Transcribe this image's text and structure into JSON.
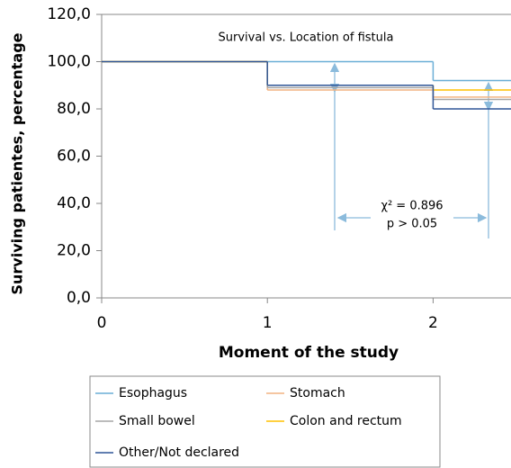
{
  "chart_data": {
    "type": "step",
    "title": "Survival vs. Location of fistula",
    "x_label": "Moment of the study",
    "y_label": "Surviving patientes, percentage",
    "annotations": [
      "χ² = 0.896",
      "p > 0.05"
    ],
    "x": [
      0,
      1,
      2
    ],
    "xlim": [
      0,
      2.47
    ],
    "xticks": [
      0,
      1,
      2
    ],
    "ylim": [
      0,
      120
    ],
    "yticks": [
      {
        "value": 0,
        "label": "0,0"
      },
      {
        "value": 20,
        "label": "20,0"
      },
      {
        "value": 40,
        "label": "40,0"
      },
      {
        "value": 60,
        "label": "60,0"
      },
      {
        "value": 80,
        "label": "80,0"
      },
      {
        "value": 100,
        "label": "100,0"
      },
      {
        "value": 120,
        "label": "120,0"
      }
    ],
    "series": [
      {
        "name": "Esophagus",
        "color": "#6aaed6",
        "values": [
          100,
          100,
          92
        ]
      },
      {
        "name": "Stomach",
        "color": "#f2b482",
        "values": [
          100,
          88,
          85
        ]
      },
      {
        "name": "Small bowel",
        "color": "#a5a5a5",
        "values": [
          100,
          89,
          84
        ]
      },
      {
        "name": "Colon and rectum",
        "color": "#ffc000",
        "values": [
          100,
          90,
          88
        ]
      },
      {
        "name": "Other/Not declared",
        "color": "#2f5597",
        "values": [
          100,
          90,
          80
        ]
      }
    ]
  }
}
